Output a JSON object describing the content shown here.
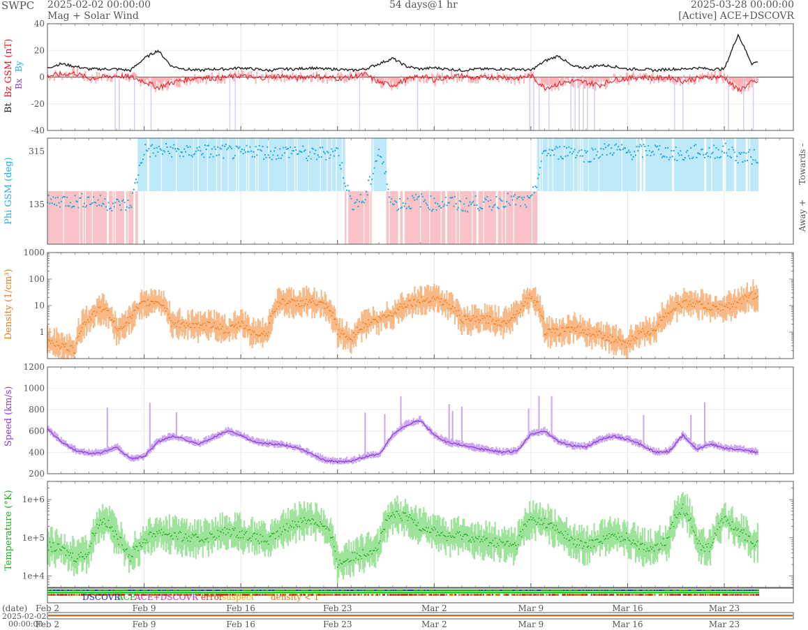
{
  "header": {
    "org": "SWPC",
    "start": "2025-02-02 00:00:00",
    "subtitle": "Mag + Solar Wind",
    "span": "54 days@1 hr",
    "end": "2025-03-28 00:00:00",
    "source": "[Active] ACE+DSCOVR"
  },
  "legend": {
    "dscovr": "DSCOVR",
    "ace": "ACE",
    "ace_dscovr": "ACE+DSCOVR",
    "error": "error",
    "suspect": "suspect",
    "density": "density < 1"
  },
  "colors": {
    "bt": "#222222",
    "bz": "#e8141e",
    "bz_fill": "#ff9da1",
    "bx": "#8a3bd4",
    "by": "#1eb0e8",
    "phi": "#1ea7e0",
    "phi_towards": "#bde9f8",
    "phi_away": "#f8c2c6",
    "density": "#f07a10",
    "density_fill": "#f8b987",
    "speed": "#8a3bd4",
    "speed_fill": "#cba8ef",
    "temp": "#1cae1c",
    "temp_fill": "#9ee39a"
  },
  "timeline": {
    "date_label": "(date)",
    "start_date": "2025-02-02",
    "start_time": "00:00:00",
    "ticks": [
      "Feb 2",
      "Feb 9",
      "Feb 16",
      "Feb 23",
      "Mar 2",
      "Mar 9",
      "Mar 16",
      "Mar 23"
    ]
  },
  "chart_data": [
    {
      "type": "line",
      "panel": "mag",
      "ylabel": {
        "bt": "Bt",
        "bz": "Bz GSM (nT)",
        "bx": "Bx",
        "by": "By"
      },
      "ylim": [
        -40,
        40
      ],
      "yticks": [
        "40",
        "20",
        "0",
        "-20",
        "-40"
      ],
      "x_days": [
        0,
        1,
        2,
        3,
        4,
        5,
        6,
        7,
        8,
        9,
        10,
        11,
        12,
        13,
        14,
        15,
        16,
        17,
        18,
        19,
        20,
        21,
        22,
        23,
        24,
        25,
        26,
        27,
        28,
        29,
        30,
        31,
        32,
        33,
        34,
        35,
        36,
        37,
        38,
        39,
        40,
        41,
        42,
        43,
        44,
        45,
        46,
        47,
        48,
        49,
        50,
        51,
        52,
        53
      ],
      "series": [
        {
          "name": "Bt",
          "values": [
            7,
            10,
            8,
            6,
            6,
            6,
            5,
            14,
            20,
            8,
            6,
            5,
            6,
            6,
            7,
            6,
            5,
            6,
            6,
            7,
            6,
            6,
            5,
            6,
            10,
            14,
            8,
            6,
            7,
            6,
            5,
            6,
            6,
            6,
            6,
            5,
            12,
            16,
            8,
            7,
            9,
            8,
            6,
            6,
            5,
            6,
            6,
            7,
            6,
            6,
            32,
            10,
            14,
            9
          ]
        },
        {
          "name": "Bz",
          "values": [
            1,
            2,
            3,
            -1,
            0,
            1,
            0,
            -3,
            -8,
            -4,
            -2,
            0,
            -1,
            0,
            1,
            -1,
            0,
            1,
            -1,
            1,
            0,
            -1,
            0,
            2,
            -4,
            -6,
            -2,
            1,
            -2,
            0,
            1,
            -1,
            0,
            0,
            -1,
            1,
            -8,
            -5,
            -3,
            -4,
            -6,
            -2,
            -1,
            0,
            -1,
            0,
            -3,
            -1,
            0,
            0,
            -10,
            -4,
            -3,
            -2
          ]
        }
      ]
    },
    {
      "type": "scatter",
      "panel": "phi",
      "ylabel": "Phi GSM (deg)",
      "yticks": [
        "315",
        "135"
      ],
      "right_labels": [
        "Towards -",
        "Away +"
      ],
      "x_days": [
        0,
        1,
        2,
        3,
        4,
        5,
        6,
        7,
        8,
        9,
        10,
        11,
        12,
        13,
        14,
        15,
        16,
        17,
        18,
        19,
        20,
        21,
        22,
        23,
        24,
        25,
        26,
        27,
        28,
        29,
        30,
        31,
        32,
        33,
        34,
        35,
        36,
        37,
        38,
        39,
        40,
        41,
        42,
        43,
        44,
        45,
        46,
        47,
        48,
        49,
        50,
        51,
        52,
        53
      ],
      "values": [
        140,
        150,
        145,
        150,
        140,
        135,
        130,
        320,
        315,
        320,
        310,
        318,
        312,
        315,
        305,
        320,
        310,
        312,
        318,
        300,
        310,
        315,
        140,
        150,
        320,
        135,
        140,
        150,
        135,
        145,
        130,
        140,
        135,
        150,
        145,
        140,
        315,
        310,
        320,
        300,
        315,
        325,
        310,
        315,
        320,
        310,
        300,
        315,
        310,
        320,
        300,
        295,
        305,
        310
      ]
    },
    {
      "type": "area",
      "panel": "density",
      "ylabel": "Density (1/cm³)",
      "scale": "log",
      "ylim": [
        0.1,
        1000
      ],
      "yticks": [
        "1000",
        "100",
        "10",
        "1"
      ],
      "x_days": [
        0,
        1,
        2,
        3,
        4,
        5,
        6,
        7,
        8,
        9,
        10,
        11,
        12,
        13,
        14,
        15,
        16,
        17,
        18,
        19,
        20,
        21,
        22,
        23,
        24,
        25,
        26,
        27,
        28,
        29,
        30,
        31,
        32,
        33,
        34,
        35,
        36,
        37,
        38,
        39,
        40,
        41,
        42,
        43,
        44,
        45,
        46,
        47,
        48,
        49,
        50,
        51,
        52,
        53
      ],
      "values": [
        0.5,
        0.3,
        0.2,
        3,
        8,
        1,
        3,
        12,
        15,
        2,
        2,
        1.5,
        2,
        1,
        2,
        0.8,
        1,
        15,
        12,
        14,
        10,
        1,
        0.5,
        2,
        3,
        5,
        12,
        15,
        20,
        10,
        3,
        3,
        3,
        2,
        5,
        20,
        1,
        1,
        1.5,
        1,
        0.8,
        0.5,
        0.3,
        1,
        1,
        6,
        12,
        12,
        8,
        9,
        12,
        25,
        10,
        8
      ]
    },
    {
      "type": "line",
      "panel": "speed",
      "ylabel": "Speed (km/s)",
      "ylim": [
        200,
        1200
      ],
      "yticks": [
        "1200",
        "1000",
        "800",
        "600",
        "400",
        "200"
      ],
      "x_days": [
        0,
        1,
        2,
        3,
        4,
        5,
        6,
        7,
        8,
        9,
        10,
        11,
        12,
        13,
        14,
        15,
        16,
        17,
        18,
        19,
        20,
        21,
        22,
        23,
        24,
        25,
        26,
        27,
        28,
        29,
        30,
        31,
        32,
        33,
        34,
        35,
        36,
        37,
        38,
        39,
        40,
        41,
        42,
        43,
        44,
        45,
        46,
        47,
        48,
        49,
        50,
        51,
        52,
        53
      ],
      "values": [
        620,
        500,
        420,
        390,
        400,
        450,
        340,
        360,
        500,
        550,
        520,
        480,
        540,
        600,
        560,
        500,
        480,
        470,
        450,
        390,
        330,
        310,
        320,
        360,
        380,
        560,
        660,
        700,
        560,
        490,
        470,
        440,
        420,
        400,
        410,
        570,
        600,
        500,
        460,
        450,
        520,
        550,
        520,
        470,
        400,
        410,
        560,
        430,
        480,
        440,
        430,
        410,
        380,
        370
      ]
    },
    {
      "type": "area",
      "panel": "temperature",
      "ylabel": "Temperature (°K)",
      "scale": "log",
      "ylim": [
        5000,
        3000000
      ],
      "yticks": [
        "1e+6",
        "1e+5",
        "1e+4"
      ],
      "x_days": [
        0,
        1,
        2,
        3,
        4,
        5,
        6,
        7,
        8,
        9,
        10,
        11,
        12,
        13,
        14,
        15,
        16,
        17,
        18,
        19,
        20,
        21,
        22,
        23,
        24,
        25,
        26,
        27,
        28,
        29,
        30,
        31,
        32,
        33,
        34,
        35,
        36,
        37,
        38,
        39,
        40,
        41,
        42,
        43,
        44,
        45,
        46,
        47,
        48,
        49,
        50,
        51,
        52,
        53
      ],
      "values": [
        60000,
        50000,
        30000,
        40000,
        300000,
        100000,
        30000,
        80000,
        150000,
        120000,
        100000,
        90000,
        110000,
        150000,
        130000,
        100000,
        80000,
        150000,
        250000,
        300000,
        200000,
        20000,
        30000,
        40000,
        60000,
        400000,
        350000,
        200000,
        150000,
        100000,
        120000,
        90000,
        80000,
        70000,
        60000,
        300000,
        250000,
        150000,
        80000,
        60000,
        90000,
        110000,
        100000,
        60000,
        50000,
        90000,
        600000,
        70000,
        50000,
        300000,
        150000,
        80000,
        60000,
        40000
      ]
    }
  ]
}
